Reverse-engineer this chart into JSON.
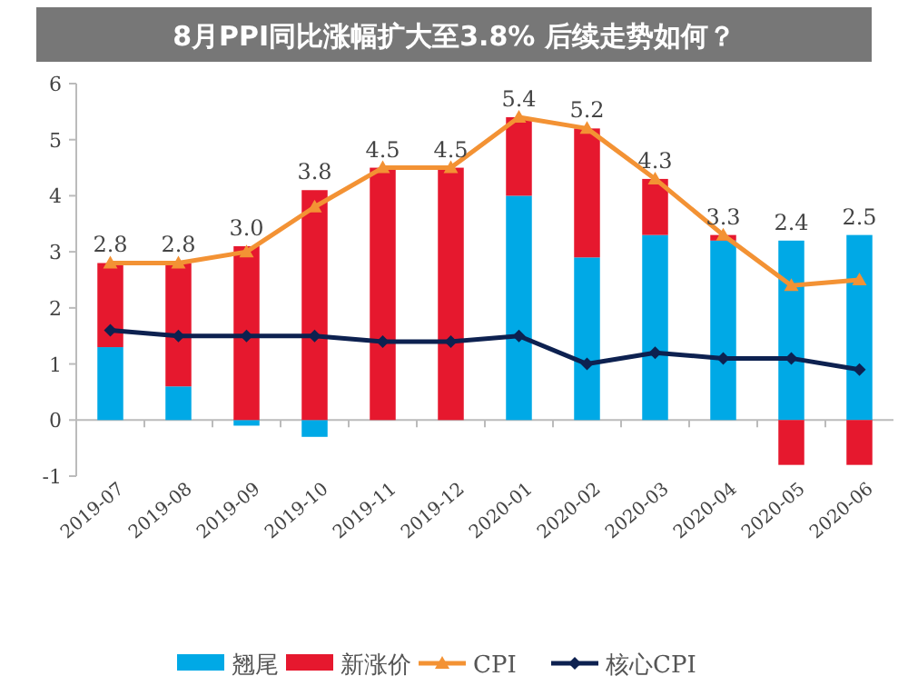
{
  "chart_data": {
    "type": "bar",
    "title": "8月PPI同比涨幅扩大至3.8% 后续走势如何？",
    "stacked": true,
    "categories": [
      "2019-07",
      "2019-08",
      "2019-09",
      "2019-10",
      "2019-11",
      "2019-12",
      "2020-01",
      "2020-02",
      "2020-03",
      "2020-04",
      "2020-05",
      "2020-06"
    ],
    "series": [
      {
        "name": "翘尾",
        "color": "#00a9e6",
        "values": [
          1.3,
          0.6,
          -0.1,
          -0.3,
          0,
          0,
          4.0,
          2.9,
          3.3,
          3.2,
          3.2,
          3.3
        ]
      },
      {
        "name": "新涨价",
        "color": "#e6182e",
        "values": [
          1.5,
          2.2,
          3.1,
          4.1,
          4.5,
          4.5,
          1.4,
          2.3,
          1.0,
          0.1,
          -0.8,
          -0.8
        ]
      },
      {
        "name": "CPI",
        "type": "line",
        "color": "#f39234",
        "marker": "triangle",
        "values": [
          2.8,
          2.8,
          3.0,
          3.8,
          4.5,
          4.5,
          5.4,
          5.2,
          4.3,
          3.3,
          2.4,
          2.5
        ],
        "value_labels": [
          "2.8",
          "2.8",
          "3.0",
          "3.8",
          "4.5",
          "4.5",
          "5.4",
          "5.2",
          "4.3",
          "3.3",
          "2.4",
          "2.5"
        ]
      },
      {
        "name": "核心CPI",
        "type": "line",
        "color": "#0d2150",
        "marker": "diamond",
        "values": [
          1.6,
          1.5,
          1.5,
          1.5,
          1.4,
          1.4,
          1.5,
          1.0,
          1.2,
          1.1,
          1.1,
          0.9
        ]
      }
    ],
    "ylim": [
      -1,
      6
    ],
    "yticks": [
      -1,
      0,
      1,
      2,
      3,
      4,
      5,
      6
    ],
    "legend": "bottom"
  }
}
